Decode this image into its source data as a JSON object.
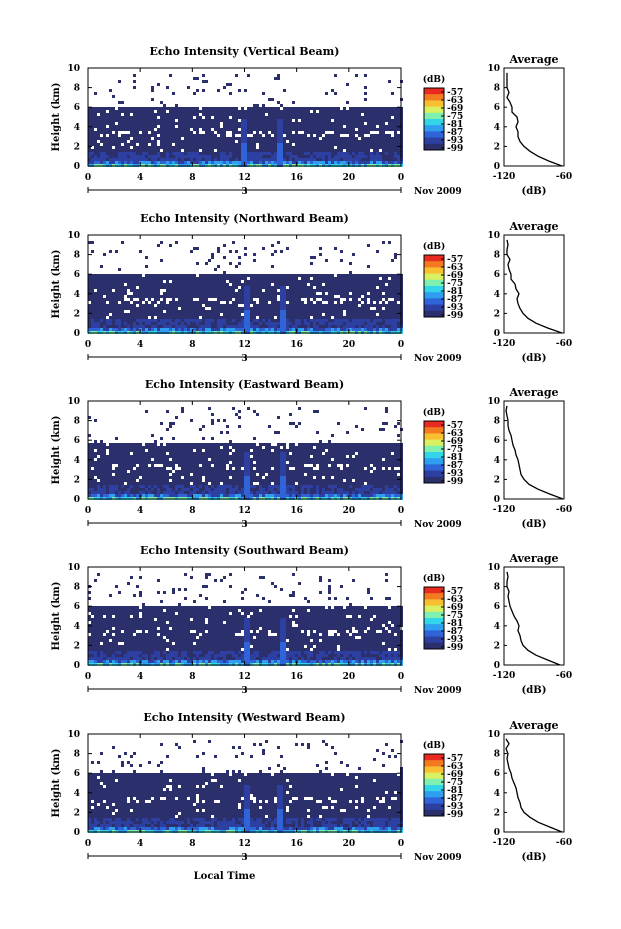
{
  "chart_data": [
    {
      "type": "heatmap",
      "title": "Echo Intensity (Vertical Beam)",
      "ylabel": "Height (km)",
      "xticks": [
        "0",
        "4",
        "8",
        "12",
        "16",
        "20",
        "0"
      ],
      "yticks": [
        "0",
        "2",
        "4",
        "6",
        "8",
        "10"
      ],
      "xlim": [
        0,
        24
      ],
      "ylim": [
        0,
        10
      ],
      "date_label": "3",
      "month_label": "Nov 2009",
      "colorbar": {
        "label": "(dB)",
        "ticks": [
          "-57",
          "-63",
          "-69",
          "-75",
          "-81",
          "-87",
          "-93",
          "-99"
        ]
      },
      "data_top_km": 6.3,
      "spike_hours": [
        11.9,
        14.7
      ],
      "profile": {
        "title": "Average",
        "xlabel": "(dB)",
        "xlim": [
          -120,
          -60
        ],
        "xticks": [
          "-120",
          "-60"
        ],
        "yticks": [
          "0",
          "2",
          "4",
          "6",
          "8",
          "10"
        ],
        "ylim": [
          0,
          10
        ],
        "heights": [
          0,
          0.5,
          1,
          1.5,
          2,
          2.5,
          3,
          3.5,
          4,
          4.5,
          5,
          5.5,
          6,
          6.5,
          7,
          7.5,
          8,
          8.5,
          9,
          9.5
        ],
        "values": [
          -62,
          -75,
          -86,
          -94,
          -100,
          -104,
          -106,
          -106,
          -108,
          -106,
          -107,
          -112,
          -112,
          -114,
          -117,
          -115,
          -117,
          -117,
          -117,
          -117
        ]
      }
    },
    {
      "type": "heatmap",
      "title": "Echo Intensity (Northward Beam)",
      "ylabel": "Height (km)",
      "xticks": [
        "0",
        "4",
        "8",
        "12",
        "16",
        "20",
        "0"
      ],
      "yticks": [
        "0",
        "2",
        "4",
        "6",
        "8",
        "10"
      ],
      "xlim": [
        0,
        24
      ],
      "ylim": [
        0,
        10
      ],
      "date_label": "3",
      "month_label": "Nov 2009",
      "colorbar": {
        "label": "(dB)",
        "ticks": [
          "-57",
          "-63",
          "-69",
          "-75",
          "-81",
          "-87",
          "-93",
          "-99"
        ]
      },
      "data_top_km": 6.2,
      "spike_hours": [
        12.0,
        14.8
      ],
      "profile": {
        "title": "Average",
        "xlabel": "(dB)",
        "xlim": [
          -120,
          -60
        ],
        "xticks": [
          "-120",
          "-60"
        ],
        "yticks": [
          "0",
          "2",
          "4",
          "6",
          "8",
          "10"
        ],
        "ylim": [
          0,
          10
        ],
        "heights": [
          0,
          0.5,
          1,
          1.5,
          2,
          2.5,
          3,
          3.5,
          4,
          4.5,
          5,
          5.5,
          6,
          6.5,
          7,
          7.5,
          8,
          8.5,
          9,
          9.5
        ],
        "values": [
          -62,
          -76,
          -88,
          -96,
          -101,
          -104,
          -106,
          -107,
          -105,
          -108,
          -109,
          -113,
          -113,
          -115,
          -116,
          -114,
          -117,
          -117,
          -116,
          -117
        ]
      }
    },
    {
      "type": "heatmap",
      "title": "Echo Intensity (Eastward Beam)",
      "ylabel": "Height (km)",
      "xticks": [
        "0",
        "4",
        "8",
        "12",
        "16",
        "20",
        "0"
      ],
      "yticks": [
        "0",
        "2",
        "4",
        "6",
        "8",
        "10"
      ],
      "xlim": [
        0,
        24
      ],
      "ylim": [
        0,
        10
      ],
      "date_label": "3",
      "month_label": "Nov 2009",
      "colorbar": {
        "label": "(dB)",
        "ticks": [
          "-57",
          "-63",
          "-69",
          "-75",
          "-81",
          "-87",
          "-93",
          "-99"
        ]
      },
      "data_top_km": 5.9,
      "spike_hours": [
        12.0,
        14.8
      ],
      "profile": {
        "title": "Average",
        "xlabel": "(dB)",
        "xlim": [
          -120,
          -60
        ],
        "xticks": [
          "-120",
          "-60"
        ],
        "yticks": [
          "0",
          "2",
          "4",
          "6",
          "8",
          "10"
        ],
        "ylim": [
          0,
          10
        ],
        "heights": [
          0,
          0.5,
          1,
          1.5,
          2,
          2.5,
          3,
          3.5,
          4,
          4.5,
          5,
          5.5,
          6,
          6.5,
          7,
          7.5,
          8,
          8.5,
          9,
          9.5
        ],
        "values": [
          -61,
          -74,
          -86,
          -95,
          -100,
          -103,
          -104,
          -105,
          -106,
          -108,
          -109,
          -111,
          -112,
          -113,
          -115,
          -116,
          -116,
          -117,
          -118,
          -117
        ]
      }
    },
    {
      "type": "heatmap",
      "title": "Echo Intensity (Southward Beam)",
      "ylabel": "Height (km)",
      "xticks": [
        "0",
        "4",
        "8",
        "12",
        "16",
        "20",
        "0"
      ],
      "yticks": [
        "0",
        "2",
        "4",
        "6",
        "8",
        "10"
      ],
      "xlim": [
        0,
        24
      ],
      "ylim": [
        0,
        10
      ],
      "date_label": "3",
      "month_label": "Nov 2009",
      "colorbar": {
        "label": "(dB)",
        "ticks": [
          "-57",
          "-63",
          "-69",
          "-75",
          "-81",
          "-87",
          "-93",
          "-99"
        ]
      },
      "data_top_km": 6.2,
      "spike_hours": [
        12.0,
        14.8
      ],
      "profile": {
        "title": "Average",
        "xlabel": "(dB)",
        "xlim": [
          -120,
          -60
        ],
        "xticks": [
          "-120",
          "-60"
        ],
        "yticks": [
          "0",
          "2",
          "4",
          "6",
          "8",
          "10"
        ],
        "ylim": [
          0,
          10
        ],
        "heights": [
          0,
          0.5,
          1,
          1.5,
          2,
          2.5,
          3,
          3.5,
          4,
          4.5,
          5,
          5.5,
          6,
          6.5,
          7,
          7.5,
          8,
          8.5,
          9,
          9.5
        ],
        "values": [
          -64,
          -76,
          -88,
          -96,
          -101,
          -103,
          -104,
          -106,
          -105,
          -107,
          -110,
          -112,
          -114,
          -115,
          -116,
          -115,
          -117,
          -117,
          -116,
          -117
        ]
      }
    },
    {
      "type": "heatmap",
      "title": "Echo Intensity (Westward Beam)",
      "ylabel": "Height (km)",
      "xticks": [
        "0",
        "4",
        "8",
        "12",
        "16",
        "20",
        "0"
      ],
      "yticks": [
        "0",
        "2",
        "4",
        "6",
        "8",
        "10"
      ],
      "xlim": [
        0,
        24
      ],
      "ylim": [
        0,
        10
      ],
      "date_label": "3",
      "month_label": "Nov 2009",
      "colorbar": {
        "label": "(dB)",
        "ticks": [
          "-57",
          "-63",
          "-69",
          "-75",
          "-81",
          "-87",
          "-93",
          "-99"
        ]
      },
      "data_top_km": 6.2,
      "spike_hours": [
        12.0,
        14.7
      ],
      "profile": {
        "title": "Average",
        "xlabel": "(dB)",
        "xlim": [
          -120,
          -60
        ],
        "xticks": [
          "-120",
          "-60"
        ],
        "yticks": [
          "0",
          "2",
          "4",
          "6",
          "8",
          "10"
        ],
        "ylim": [
          0,
          10
        ],
        "heights": [
          0,
          0.5,
          1,
          1.5,
          2,
          2.5,
          3,
          3.5,
          4,
          4.5,
          5,
          5.5,
          6,
          6.5,
          7,
          7.5,
          8,
          8.5,
          9,
          9.5
        ],
        "values": [
          -62,
          -74,
          -86,
          -94,
          -100,
          -103,
          -104,
          -106,
          -107,
          -108,
          -110,
          -112,
          -113,
          -115,
          -116,
          -117,
          -116,
          -118,
          -115,
          -118
        ]
      }
    }
  ],
  "xaxis_label": "Local Time",
  "colormap": [
    "#ffffff",
    "#2b2f6b",
    "#2d3fa0",
    "#2f63d8",
    "#2f9ef0",
    "#33d5e8",
    "#7ff0b0",
    "#d9f060",
    "#f8c030",
    "#f47a20",
    "#e82a20"
  ]
}
